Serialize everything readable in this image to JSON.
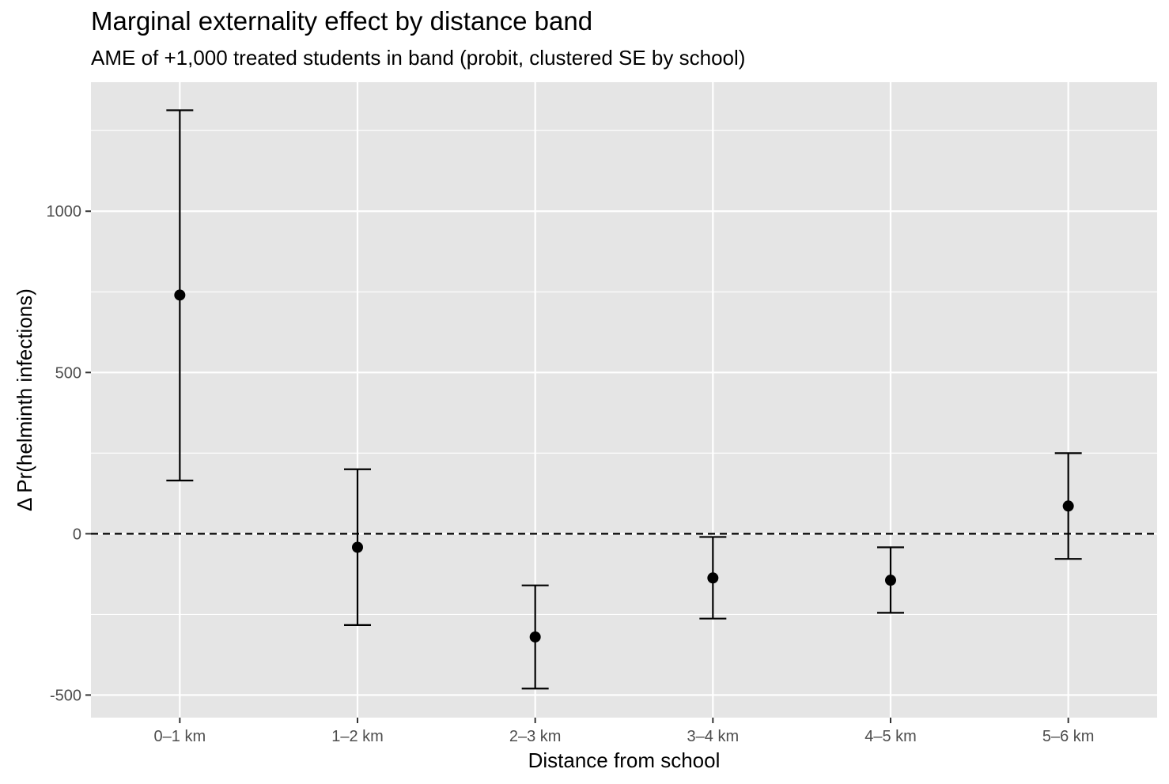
{
  "chart_data": {
    "type": "scatter",
    "title": "Marginal externality effect by distance band",
    "subtitle": "AME of +1,000 treated students in band (probit, clustered SE by school)",
    "xlabel": "Distance from school",
    "ylabel": "Δ Pr(helminth infections)",
    "categories": [
      "0–1 km",
      "1–2 km",
      "2–3 km",
      "3–4 km",
      "4–5 km",
      "5–6 km"
    ],
    "estimates": [
      740,
      -42,
      -320,
      -137,
      -144,
      86
    ],
    "ci_low": [
      165,
      -283,
      -480,
      -263,
      -245,
      -78
    ],
    "ci_high": [
      1313,
      200,
      -160,
      -10,
      -42,
      250
    ],
    "y_ticks": [
      -500,
      0,
      500,
      1000
    ],
    "y_tick_labels": [
      "-500",
      "0",
      "500",
      "1000"
    ],
    "ylim": [
      -570,
      1400
    ],
    "reference_line": 0,
    "grid": true,
    "colors": {
      "panel": "#e5e5e5",
      "grid": "#ffffff",
      "points": "#000000"
    }
  }
}
